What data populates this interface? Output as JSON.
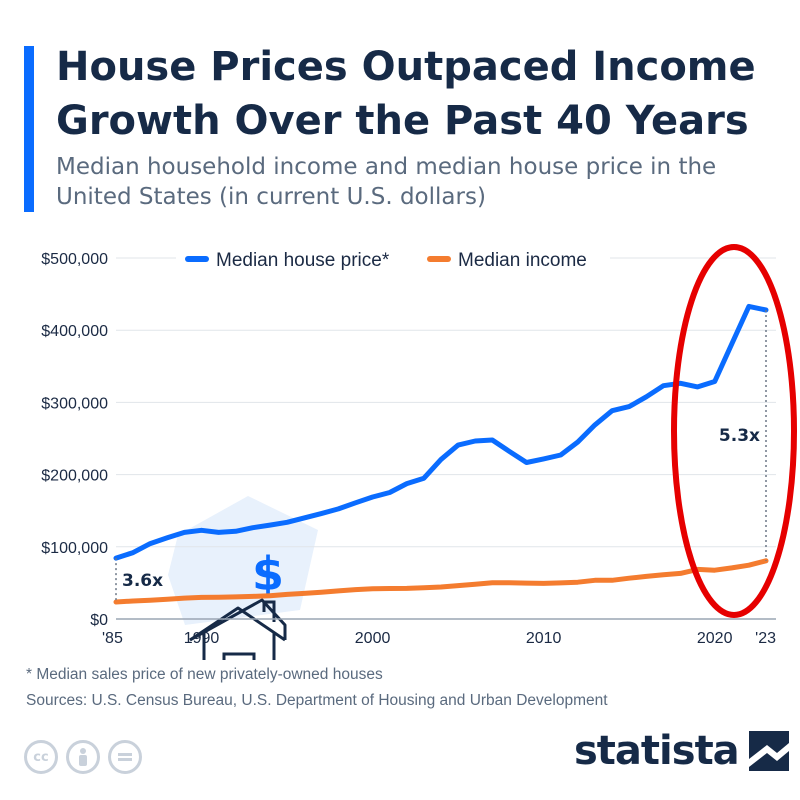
{
  "header": {
    "title": "House Prices Outpaced Income Growth Over the Past 40 Years",
    "subtitle": "Median household income and median house price in the United States (in current U.S. dollars)"
  },
  "chart_data": {
    "type": "line",
    "x": [
      1985,
      1986,
      1987,
      1988,
      1989,
      1990,
      1991,
      1992,
      1993,
      1994,
      1995,
      1996,
      1997,
      1998,
      1999,
      2000,
      2001,
      2002,
      2003,
      2004,
      2005,
      2006,
      2007,
      2008,
      2009,
      2010,
      2011,
      2012,
      2013,
      2014,
      2015,
      2016,
      2017,
      2018,
      2019,
      2020,
      2021,
      2022,
      2023
    ],
    "series": [
      {
        "name": "Median house price*",
        "color": "#0a6cff",
        "values": [
          84300,
          92000,
          104500,
          112500,
          120000,
          122900,
          120000,
          121500,
          126500,
          130000,
          133900,
          140000,
          146000,
          152500,
          161000,
          169000,
          175200,
          187600,
          195000,
          221000,
          240900,
          246500,
          247900,
          232100,
          216700,
          221800,
          227200,
          245200,
          268900,
          288500,
          294200,
          307800,
          323100,
          326400,
          321500,
          329000,
          381000,
          433000,
          428000
        ]
      },
      {
        "name": "Median income",
        "color": "#f47c2f",
        "values": [
          23600,
          24900,
          25986,
          27225,
          28906,
          29943,
          30126,
          30636,
          31241,
          32264,
          34076,
          35492,
          37005,
          38885,
          40696,
          41990,
          42228,
          42409,
          43318,
          44334,
          46326,
          48201,
          50233,
          50303,
          49777,
          49276,
          50054,
          51017,
          53585,
          53657,
          56516,
          59039,
          61372,
          63179,
          68703,
          67521,
          70784,
          74580,
          80610
        ]
      }
    ],
    "xlim": [
      1985,
      2023
    ],
    "ylim": [
      0,
      500000
    ],
    "ytick_labels": [
      "$0",
      "$100,000",
      "$200,000",
      "$300,000",
      "$400,000",
      "$500,000"
    ],
    "xtick_labels": [
      "'85",
      "1990",
      "2000",
      "2010",
      "2020",
      "'23"
    ],
    "legend_position": "top",
    "grid": "horizontal",
    "annotations": [
      {
        "text": "3.6x",
        "year": 1985
      },
      {
        "text": "5.3x",
        "year": 2023
      }
    ]
  },
  "footnote": "* Median sales price of new privately-owned houses",
  "sources": "Sources: U.S. Census Bureau, U.S. Department of Housing and Urban Development",
  "license_icons": [
    "cc-icon",
    "attribution-icon",
    "no-derivatives-icon"
  ],
  "brand": {
    "logo_text": "statista"
  }
}
